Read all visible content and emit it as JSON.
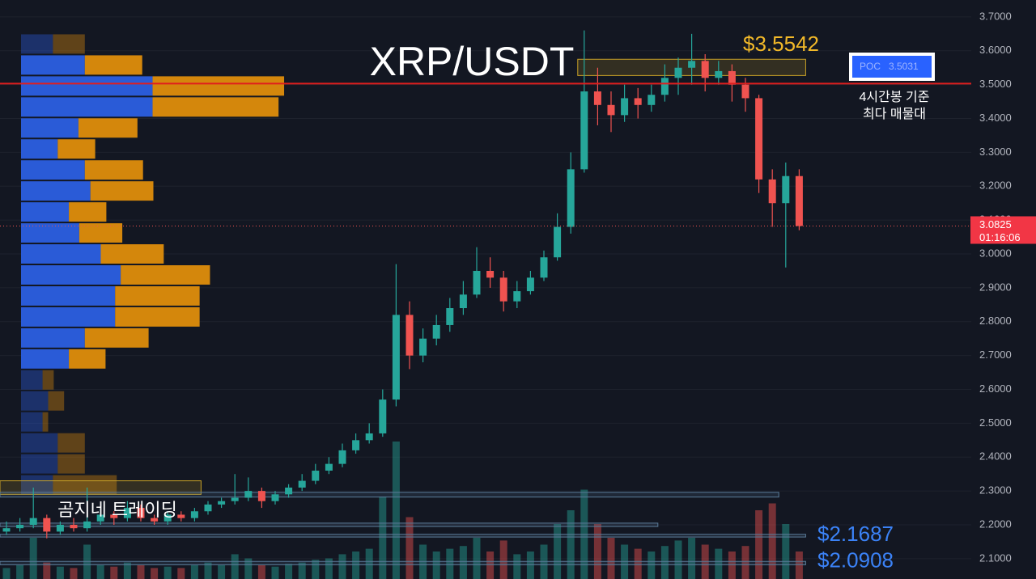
{
  "chart_data": {
    "type": "candlestick",
    "title": "XRP/USDT",
    "watermark": "곰지네 트레이딩",
    "ylim": [
      2.04,
      3.75
    ],
    "yticks": [
      {
        "value": 2.1,
        "label": "2.1000"
      },
      {
        "value": 2.2,
        "label": "2.2000"
      },
      {
        "value": 2.3,
        "label": "2.3000"
      },
      {
        "value": 2.4,
        "label": "2.4000"
      },
      {
        "value": 2.5,
        "label": "2.5000"
      },
      {
        "value": 2.6,
        "label": "2.6000"
      },
      {
        "value": 2.7,
        "label": "2.7000"
      },
      {
        "value": 2.8,
        "label": "2.8000"
      },
      {
        "value": 2.9,
        "label": "2.9000"
      },
      {
        "value": 3.0,
        "label": "3.0000"
      },
      {
        "value": 3.1,
        "label": "3.1000"
      },
      {
        "value": 3.2,
        "label": "3.2000"
      },
      {
        "value": 3.3,
        "label": "3.3000"
      },
      {
        "value": 3.4,
        "label": "3.4000"
      },
      {
        "value": 3.5,
        "label": "3.5000"
      },
      {
        "value": 3.6,
        "label": "3.6000"
      },
      {
        "value": 3.7,
        "label": "3.7000"
      }
    ],
    "grid": true,
    "up_color": "#26a69a",
    "down_color": "#ef5350",
    "candles": [
      [
        2.18,
        2.21,
        2.17,
        2.19
      ],
      [
        2.19,
        2.22,
        2.18,
        2.2
      ],
      [
        2.2,
        2.31,
        2.19,
        2.22
      ],
      [
        2.22,
        2.23,
        2.16,
        2.18
      ],
      [
        2.18,
        2.21,
        2.17,
        2.2
      ],
      [
        2.2,
        2.22,
        2.18,
        2.19
      ],
      [
        2.19,
        2.31,
        2.18,
        2.21
      ],
      [
        2.21,
        2.25,
        2.2,
        2.23
      ],
      [
        2.23,
        2.24,
        2.2,
        2.22
      ],
      [
        2.22,
        2.27,
        2.21,
        2.25
      ],
      [
        2.25,
        2.26,
        2.21,
        2.22
      ],
      [
        2.22,
        2.23,
        2.2,
        2.21
      ],
      [
        2.21,
        2.24,
        2.2,
        2.23
      ],
      [
        2.23,
        2.24,
        2.21,
        2.22
      ],
      [
        2.22,
        2.25,
        2.21,
        2.24
      ],
      [
        2.24,
        2.27,
        2.23,
        2.26
      ],
      [
        2.26,
        2.28,
        2.25,
        2.27
      ],
      [
        2.27,
        2.35,
        2.26,
        2.28
      ],
      [
        2.28,
        2.34,
        2.27,
        2.3
      ],
      [
        2.3,
        2.31,
        2.25,
        2.27
      ],
      [
        2.27,
        2.3,
        2.26,
        2.29
      ],
      [
        2.29,
        2.32,
        2.28,
        2.31
      ],
      [
        2.31,
        2.35,
        2.3,
        2.33
      ],
      [
        2.33,
        2.38,
        2.32,
        2.36
      ],
      [
        2.36,
        2.4,
        2.35,
        2.38
      ],
      [
        2.38,
        2.44,
        2.37,
        2.42
      ],
      [
        2.42,
        2.47,
        2.41,
        2.45
      ],
      [
        2.45,
        2.5,
        2.44,
        2.47
      ],
      [
        2.47,
        2.6,
        2.46,
        2.57
      ],
      [
        2.57,
        2.97,
        2.55,
        2.82
      ],
      [
        2.82,
        2.86,
        2.66,
        2.7
      ],
      [
        2.7,
        2.78,
        2.68,
        2.75
      ],
      [
        2.75,
        2.82,
        2.73,
        2.79
      ],
      [
        2.79,
        2.87,
        2.77,
        2.84
      ],
      [
        2.84,
        2.92,
        2.82,
        2.88
      ],
      [
        2.88,
        3.02,
        2.87,
        2.95
      ],
      [
        2.95,
        2.99,
        2.9,
        2.93
      ],
      [
        2.93,
        2.95,
        2.83,
        2.86
      ],
      [
        2.86,
        2.92,
        2.84,
        2.89
      ],
      [
        2.89,
        2.95,
        2.88,
        2.93
      ],
      [
        2.93,
        3.01,
        2.92,
        2.99
      ],
      [
        2.99,
        3.12,
        2.98,
        3.08
      ],
      [
        3.08,
        3.3,
        3.06,
        3.25
      ],
      [
        3.25,
        3.66,
        3.24,
        3.48
      ],
      [
        3.48,
        3.55,
        3.38,
        3.44
      ],
      [
        3.44,
        3.48,
        3.36,
        3.41
      ],
      [
        3.41,
        3.5,
        3.39,
        3.46
      ],
      [
        3.46,
        3.49,
        3.4,
        3.44
      ],
      [
        3.44,
        3.5,
        3.42,
        3.47
      ],
      [
        3.47,
        3.56,
        3.45,
        3.52
      ],
      [
        3.52,
        3.58,
        3.47,
        3.55
      ],
      [
        3.55,
        3.65,
        3.5,
        3.57
      ],
      [
        3.57,
        3.59,
        3.48,
        3.52
      ],
      [
        3.52,
        3.57,
        3.5,
        3.54
      ],
      [
        3.54,
        3.56,
        3.45,
        3.5
      ],
      [
        3.5,
        3.52,
        3.42,
        3.46
      ],
      [
        3.46,
        3.47,
        3.18,
        3.22
      ],
      [
        3.22,
        3.25,
        3.08,
        3.15
      ],
      [
        3.15,
        3.27,
        2.96,
        3.23
      ],
      [
        3.23,
        3.25,
        3.07,
        3.0825
      ]
    ],
    "volume": [
      8,
      10,
      30,
      12,
      9,
      8,
      25,
      10,
      9,
      12,
      10,
      8,
      9,
      8,
      10,
      12,
      10,
      18,
      15,
      10,
      9,
      11,
      12,
      14,
      15,
      18,
      20,
      22,
      60,
      100,
      45,
      25,
      20,
      22,
      24,
      30,
      20,
      28,
      18,
      20,
      25,
      40,
      50,
      65,
      40,
      30,
      25,
      22,
      20,
      24,
      28,
      30,
      25,
      22,
      20,
      24,
      50,
      55,
      40,
      20
    ],
    "profile": {
      "value_area": [
        2.66,
        3.6
      ],
      "levels": [
        {
          "price": 3.62,
          "buy": 40,
          "sell": 40
        },
        {
          "price": 3.558,
          "buy": 80,
          "sell": 72
        },
        {
          "price": 3.496,
          "buy": 165,
          "sell": 165
        },
        {
          "price": 3.434,
          "buy": 165,
          "sell": 158
        },
        {
          "price": 3.372,
          "buy": 72,
          "sell": 74
        },
        {
          "price": 3.31,
          "buy": 46,
          "sell": 47
        },
        {
          "price": 3.248,
          "buy": 80,
          "sell": 73
        },
        {
          "price": 3.186,
          "buy": 87,
          "sell": 79
        },
        {
          "price": 3.124,
          "buy": 60,
          "sell": 47
        },
        {
          "price": 3.062,
          "buy": 73,
          "sell": 54
        },
        {
          "price": 3.0,
          "buy": 100,
          "sell": 79
        },
        {
          "price": 2.938,
          "buy": 125,
          "sell": 112
        },
        {
          "price": 2.876,
          "buy": 118,
          "sell": 106
        },
        {
          "price": 2.814,
          "buy": 118,
          "sell": 106
        },
        {
          "price": 2.752,
          "buy": 80,
          "sell": 80
        },
        {
          "price": 2.69,
          "buy": 60,
          "sell": 46
        },
        {
          "price": 2.628,
          "buy": 27,
          "sell": 14
        },
        {
          "price": 2.566,
          "buy": 34,
          "sell": 20
        },
        {
          "price": 2.504,
          "buy": 27,
          "sell": 7
        },
        {
          "price": 2.442,
          "buy": 46,
          "sell": 34
        },
        {
          "price": 2.38,
          "buy": 46,
          "sell": 34
        },
        {
          "price": 2.318,
          "buy": 40,
          "sell": 80
        }
      ]
    },
    "zones": [
      {
        "low": 3.527,
        "high": 3.575,
        "start": 43,
        "end": 59,
        "color": "#c9a227"
      },
      {
        "low": 2.29,
        "high": 2.33,
        "start": 0,
        "end": 14,
        "color": "#c9a227"
      },
      {
        "low": 2.282,
        "high": 2.296,
        "start": 0,
        "end": 57,
        "color": "#5b7c99"
      },
      {
        "low": 2.195,
        "high": 2.205,
        "start": 0,
        "end": 48,
        "color": "#5b7c99"
      },
      {
        "low": 2.164,
        "high": 2.172,
        "start": 0,
        "end": 59,
        "color": "#5b7c99"
      },
      {
        "low": 2.082,
        "high": 2.092,
        "start": 0,
        "end": 59,
        "color": "#5b7c99"
      }
    ],
    "levels": [
      {
        "value": 3.5542,
        "label": "$3.5542",
        "color": "#f2b929"
      },
      {
        "value": 2.1687,
        "label": "$2.1687",
        "color": "#3b82f6"
      },
      {
        "value": 2.0908,
        "label": "$2.0908",
        "color": "#3b82f6"
      }
    ],
    "poc": {
      "label": "POC",
      "value": 3.5031,
      "note": [
        "4시간봉 기준",
        "최다 매물대"
      ]
    },
    "last_price": {
      "value": 3.0825,
      "countdown": "01:16:06"
    }
  }
}
